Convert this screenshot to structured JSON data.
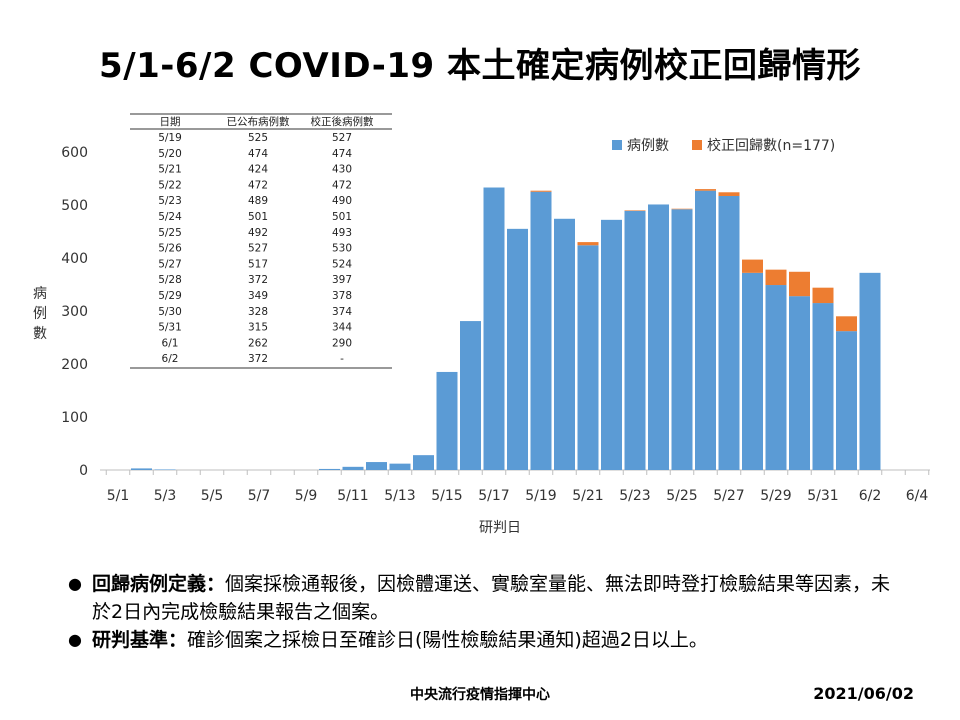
{
  "title": "5/1-6/2 COVID-19 本土確定病例校正回歸情形",
  "chart_data": {
    "type": "bar",
    "stacked": true,
    "xlabel": "研判日",
    "ylabel": "病例數",
    "ylim": [
      0,
      600
    ],
    "yticks": [
      0,
      100,
      200,
      300,
      400,
      500,
      600
    ],
    "xtick_labels": [
      "5/1",
      "5/3",
      "5/5",
      "5/7",
      "5/9",
      "5/11",
      "5/13",
      "5/15",
      "5/17",
      "5/19",
      "5/21",
      "5/23",
      "5/25",
      "5/27",
      "5/29",
      "5/31",
      "6/2",
      "6/4"
    ],
    "grid": false,
    "legend": "top-right",
    "categories": [
      "5/1",
      "5/2",
      "5/3",
      "5/4",
      "5/5",
      "5/6",
      "5/7",
      "5/8",
      "5/9",
      "5/10",
      "5/11",
      "5/12",
      "5/13",
      "5/14",
      "5/15",
      "5/16",
      "5/17",
      "5/18",
      "5/19",
      "5/20",
      "5/21",
      "5/22",
      "5/23",
      "5/24",
      "5/25",
      "5/26",
      "5/27",
      "5/28",
      "5/29",
      "5/30",
      "5/31",
      "6/1",
      "6/2"
    ],
    "series": [
      {
        "name": "病例數",
        "color": "#5b9bd5",
        "values": [
          0,
          3,
          1,
          0,
          0,
          0,
          0,
          0,
          0,
          2,
          6,
          15,
          12,
          28,
          185,
          281,
          533,
          455,
          525,
          474,
          424,
          472,
          489,
          501,
          492,
          527,
          517,
          372,
          349,
          328,
          315,
          262,
          372
        ]
      },
      {
        "name": "校正回歸數(n=177)",
        "color": "#ed7d31",
        "values": [
          0,
          0,
          0,
          0,
          0,
          0,
          0,
          0,
          0,
          0,
          0,
          0,
          0,
          0,
          0,
          0,
          0,
          0,
          2,
          0,
          6,
          0,
          1,
          0,
          1,
          3,
          7,
          25,
          29,
          46,
          29,
          28,
          0
        ]
      }
    ],
    "table": {
      "headers": [
        "日期",
        "已公布病例數",
        "校正後病例數"
      ],
      "rows": [
        [
          "5/19",
          "525",
          "527"
        ],
        [
          "5/20",
          "474",
          "474"
        ],
        [
          "5/21",
          "424",
          "430"
        ],
        [
          "5/22",
          "472",
          "472"
        ],
        [
          "5/23",
          "489",
          "490"
        ],
        [
          "5/24",
          "501",
          "501"
        ],
        [
          "5/25",
          "492",
          "493"
        ],
        [
          "5/26",
          "527",
          "530"
        ],
        [
          "5/27",
          "517",
          "524"
        ],
        [
          "5/28",
          "372",
          "397"
        ],
        [
          "5/29",
          "349",
          "378"
        ],
        [
          "5/30",
          "328",
          "374"
        ],
        [
          "5/31",
          "315",
          "344"
        ],
        [
          "6/1",
          "262",
          "290"
        ],
        [
          "6/2",
          "372",
          "-"
        ]
      ]
    }
  },
  "notes": [
    {
      "term": "回歸病例定義：",
      "text": "個案採檢通報後，因檢體運送、實驗室量能、無法即時登打檢驗結果等因素，未於2日內完成檢驗結果報告之個案。"
    },
    {
      "term": "研判基準：",
      "text": "確診個案之採檢日至確診日(陽性檢驗結果通知)超過2日以上。"
    }
  ],
  "footer": {
    "org": "中央流行疫情指揮中心",
    "date": "2021/06/02"
  }
}
